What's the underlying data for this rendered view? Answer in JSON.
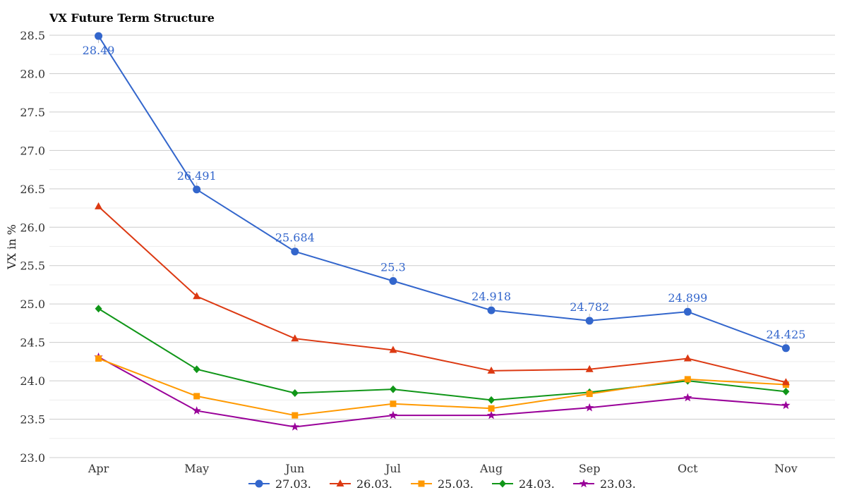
{
  "chart_data": {
    "type": "line",
    "title": "VX Future Term Structure",
    "ylabel": "VX in %",
    "xlabel": "",
    "ylim": [
      23.0,
      28.5
    ],
    "yticks": [
      "23.0",
      "23.5",
      "24.0",
      "24.5",
      "25.0",
      "25.5",
      "26.0",
      "26.5",
      "27.0",
      "27.5",
      "28.0",
      "28.5"
    ],
    "categories": [
      "Apr",
      "May",
      "Jun",
      "Jul",
      "Aug",
      "Sep",
      "Oct",
      "Nov"
    ],
    "grid": true,
    "legend_position": "bottom",
    "series": [
      {
        "name": "27.03.",
        "color": "#3366cc",
        "marker": "circle",
        "values": [
          28.49,
          26.491,
          25.684,
          25.3,
          24.918,
          24.782,
          24.899,
          24.425
        ],
        "labels": [
          "28.49",
          "26.491",
          "25.684",
          "25.3",
          "24.918",
          "24.782",
          "24.899",
          "24.425"
        ]
      },
      {
        "name": "26.03.",
        "color": "#dc3912",
        "marker": "triangle",
        "values": [
          26.27,
          25.1,
          24.55,
          24.4,
          24.13,
          24.15,
          24.29,
          23.98
        ]
      },
      {
        "name": "25.03.",
        "color": "#ff9900",
        "marker": "square",
        "values": [
          24.29,
          23.8,
          23.55,
          23.7,
          23.64,
          23.83,
          24.02,
          23.95
        ]
      },
      {
        "name": "24.03.",
        "color": "#109618",
        "marker": "diamond",
        "values": [
          24.94,
          24.15,
          23.84,
          23.89,
          23.75,
          23.85,
          24.0,
          23.86
        ]
      },
      {
        "name": "23.03.",
        "color": "#990099",
        "marker": "star",
        "values": [
          24.31,
          23.61,
          23.4,
          23.55,
          23.55,
          23.65,
          23.78,
          23.68
        ]
      }
    ]
  }
}
